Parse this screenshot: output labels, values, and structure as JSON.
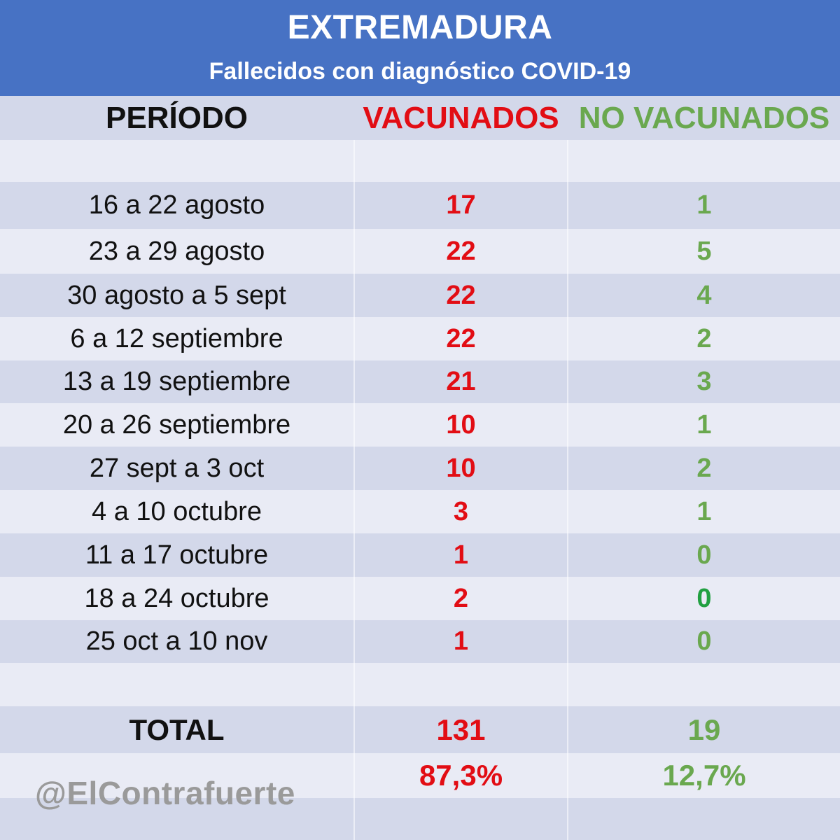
{
  "header": {
    "title": "EXTREMADURA",
    "subtitle": "Fallecidos con diagnóstico COVID-19"
  },
  "columns": {
    "period": "PERÍODO",
    "vaccinated": "VACUNADOS",
    "unvaccinated": "NO VACUNADOS"
  },
  "rows": [
    {
      "period": "16 a 22 agosto",
      "vaccinated": "17",
      "unvaccinated": "1"
    },
    {
      "period": "23 a 29 agosto",
      "vaccinated": "22",
      "unvaccinated": "5"
    },
    {
      "period": "30 agosto a 5 sept",
      "vaccinated": "22",
      "unvaccinated": "4"
    },
    {
      "period": "6 a 12 septiembre",
      "vaccinated": "22",
      "unvaccinated": "2"
    },
    {
      "period": "13 a 19 septiembre",
      "vaccinated": "21",
      "unvaccinated": "3"
    },
    {
      "period": "20 a 26 septiembre",
      "vaccinated": "10",
      "unvaccinated": "1"
    },
    {
      "period": "27 sept a 3 oct",
      "vaccinated": "10",
      "unvaccinated": "2"
    },
    {
      "period": "4 a 10 octubre",
      "vaccinated": "3",
      "unvaccinated": "1"
    },
    {
      "period": "11 a 17 octubre",
      "vaccinated": "1",
      "unvaccinated": "0"
    },
    {
      "period": "18 a 24 octubre",
      "vaccinated": "2",
      "unvaccinated": "0"
    },
    {
      "period": "25 oct a 10 nov",
      "vaccinated": "1",
      "unvaccinated": "0"
    }
  ],
  "total": {
    "label": "TOTAL",
    "vaccinated": "131",
    "unvaccinated": "19"
  },
  "percent": {
    "vaccinated": "87,3%",
    "unvaccinated": "12,7%"
  },
  "watermark": "@ElContrafuerte",
  "colors": {
    "header_bg": "#4772c4",
    "vaccinated": "#e20d14",
    "unvaccinated": "#6aa84f",
    "row_dark": "#d3d8ea",
    "row_light": "#e9ebf5"
  }
}
